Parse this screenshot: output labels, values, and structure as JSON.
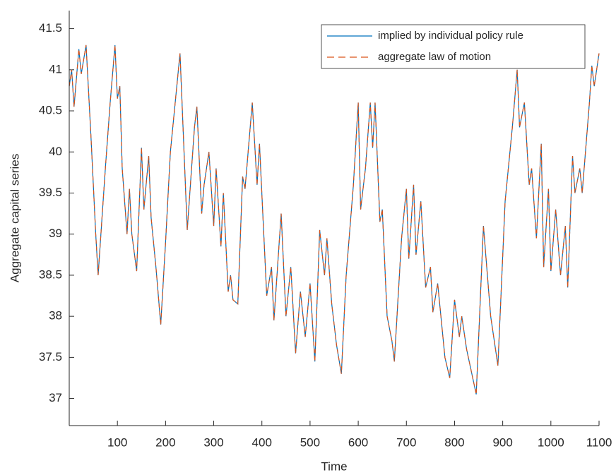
{
  "chart_data": {
    "type": "line",
    "xlabel": "Time",
    "ylabel": "Aggregate capital series",
    "x": [
      0,
      5,
      10,
      20,
      25,
      35,
      45,
      55,
      60,
      75,
      85,
      95,
      100,
      105,
      110,
      120,
      125,
      130,
      140,
      150,
      155,
      165,
      170,
      180,
      190,
      200,
      210,
      220,
      230,
      245,
      260,
      265,
      275,
      280,
      290,
      300,
      305,
      315,
      320,
      330,
      335,
      340,
      350,
      360,
      365,
      380,
      390,
      395,
      410,
      420,
      425,
      440,
      450,
      460,
      470,
      480,
      490,
      500,
      510,
      520,
      530,
      535,
      545,
      555,
      565,
      575,
      590,
      600,
      605,
      615,
      625,
      630,
      635,
      645,
      650,
      660,
      670,
      675,
      680,
      690,
      700,
      705,
      715,
      720,
      730,
      740,
      750,
      755,
      765,
      780,
      790,
      800,
      810,
      815,
      825,
      845,
      860,
      875,
      890,
      905,
      920,
      930,
      935,
      945,
      955,
      960,
      970,
      980,
      985,
      995,
      1000,
      1010,
      1020,
      1030,
      1035,
      1045,
      1050,
      1060,
      1065,
      1080,
      1085,
      1090,
      1100
    ],
    "series": [
      {
        "name": "implied by individual policy rule",
        "color": "#0072bd",
        "dash": false,
        "values": [
          40.8,
          41.0,
          40.55,
          41.25,
          40.95,
          41.3,
          40.2,
          39.0,
          38.5,
          39.8,
          40.6,
          41.3,
          40.65,
          40.8,
          39.8,
          39.0,
          39.55,
          39.0,
          38.55,
          40.05,
          39.3,
          39.95,
          39.2,
          38.6,
          37.9,
          38.9,
          40.0,
          40.6,
          41.2,
          39.05,
          40.3,
          40.55,
          39.25,
          39.6,
          40.0,
          39.1,
          39.8,
          38.85,
          39.5,
          38.3,
          38.5,
          38.2,
          38.15,
          39.7,
          39.55,
          40.6,
          39.6,
          40.1,
          38.25,
          38.6,
          37.95,
          39.25,
          38.0,
          38.6,
          37.55,
          38.3,
          37.75,
          38.4,
          37.45,
          39.05,
          38.5,
          38.95,
          38.15,
          37.65,
          37.3,
          38.5,
          39.6,
          40.6,
          39.3,
          39.8,
          40.6,
          40.05,
          40.6,
          39.15,
          39.3,
          38.0,
          37.7,
          37.45,
          37.95,
          38.95,
          39.55,
          38.7,
          39.6,
          38.75,
          39.4,
          38.35,
          38.6,
          38.05,
          38.4,
          37.5,
          37.25,
          38.2,
          37.75,
          38.0,
          37.6,
          37.05,
          39.1,
          38.0,
          37.4,
          39.4,
          40.3,
          41.0,
          40.3,
          40.6,
          39.6,
          39.8,
          38.95,
          40.1,
          38.6,
          39.55,
          38.55,
          39.3,
          38.5,
          39.1,
          38.35,
          39.95,
          39.5,
          39.8,
          39.5,
          40.6,
          41.05,
          40.8,
          41.2
        ]
      },
      {
        "name": "aggregate law of motion",
        "color": "#d95319",
        "dash": true,
        "values": [
          40.8,
          41.0,
          40.55,
          41.25,
          40.95,
          41.3,
          40.2,
          39.0,
          38.5,
          39.8,
          40.6,
          41.3,
          40.65,
          40.8,
          39.8,
          39.0,
          39.55,
          39.0,
          38.55,
          40.05,
          39.3,
          39.95,
          39.2,
          38.6,
          37.9,
          38.9,
          40.0,
          40.6,
          41.2,
          39.05,
          40.3,
          40.55,
          39.25,
          39.6,
          40.0,
          39.1,
          39.8,
          38.85,
          39.5,
          38.3,
          38.5,
          38.2,
          38.15,
          39.7,
          39.55,
          40.6,
          39.6,
          40.1,
          38.25,
          38.6,
          37.95,
          39.25,
          38.0,
          38.6,
          37.55,
          38.3,
          37.75,
          38.4,
          37.45,
          39.05,
          38.5,
          38.95,
          38.15,
          37.65,
          37.3,
          38.5,
          39.6,
          40.6,
          39.3,
          39.8,
          40.6,
          40.05,
          40.6,
          39.15,
          39.3,
          38.0,
          37.7,
          37.45,
          37.95,
          38.95,
          39.55,
          38.7,
          39.6,
          38.75,
          39.4,
          38.35,
          38.6,
          38.05,
          38.4,
          37.5,
          37.25,
          38.2,
          37.75,
          38.0,
          37.6,
          37.05,
          39.1,
          38.0,
          37.4,
          39.4,
          40.3,
          41.0,
          40.3,
          40.6,
          39.6,
          39.8,
          38.95,
          40.1,
          38.6,
          39.55,
          38.55,
          39.3,
          38.5,
          39.1,
          38.35,
          39.95,
          39.5,
          39.8,
          39.5,
          40.6,
          41.05,
          40.8,
          41.2
        ]
      }
    ],
    "xlim": [
      0,
      1100
    ],
    "xticks": [
      100,
      200,
      300,
      400,
      500,
      600,
      700,
      800,
      900,
      1000,
      1100
    ],
    "ylim": [
      36.67,
      41.72
    ],
    "yticks": [
      37,
      37.5,
      38,
      38.5,
      39,
      39.5,
      40,
      40.5,
      41,
      41.5
    ],
    "grid": false,
    "legend": "upper right"
  }
}
